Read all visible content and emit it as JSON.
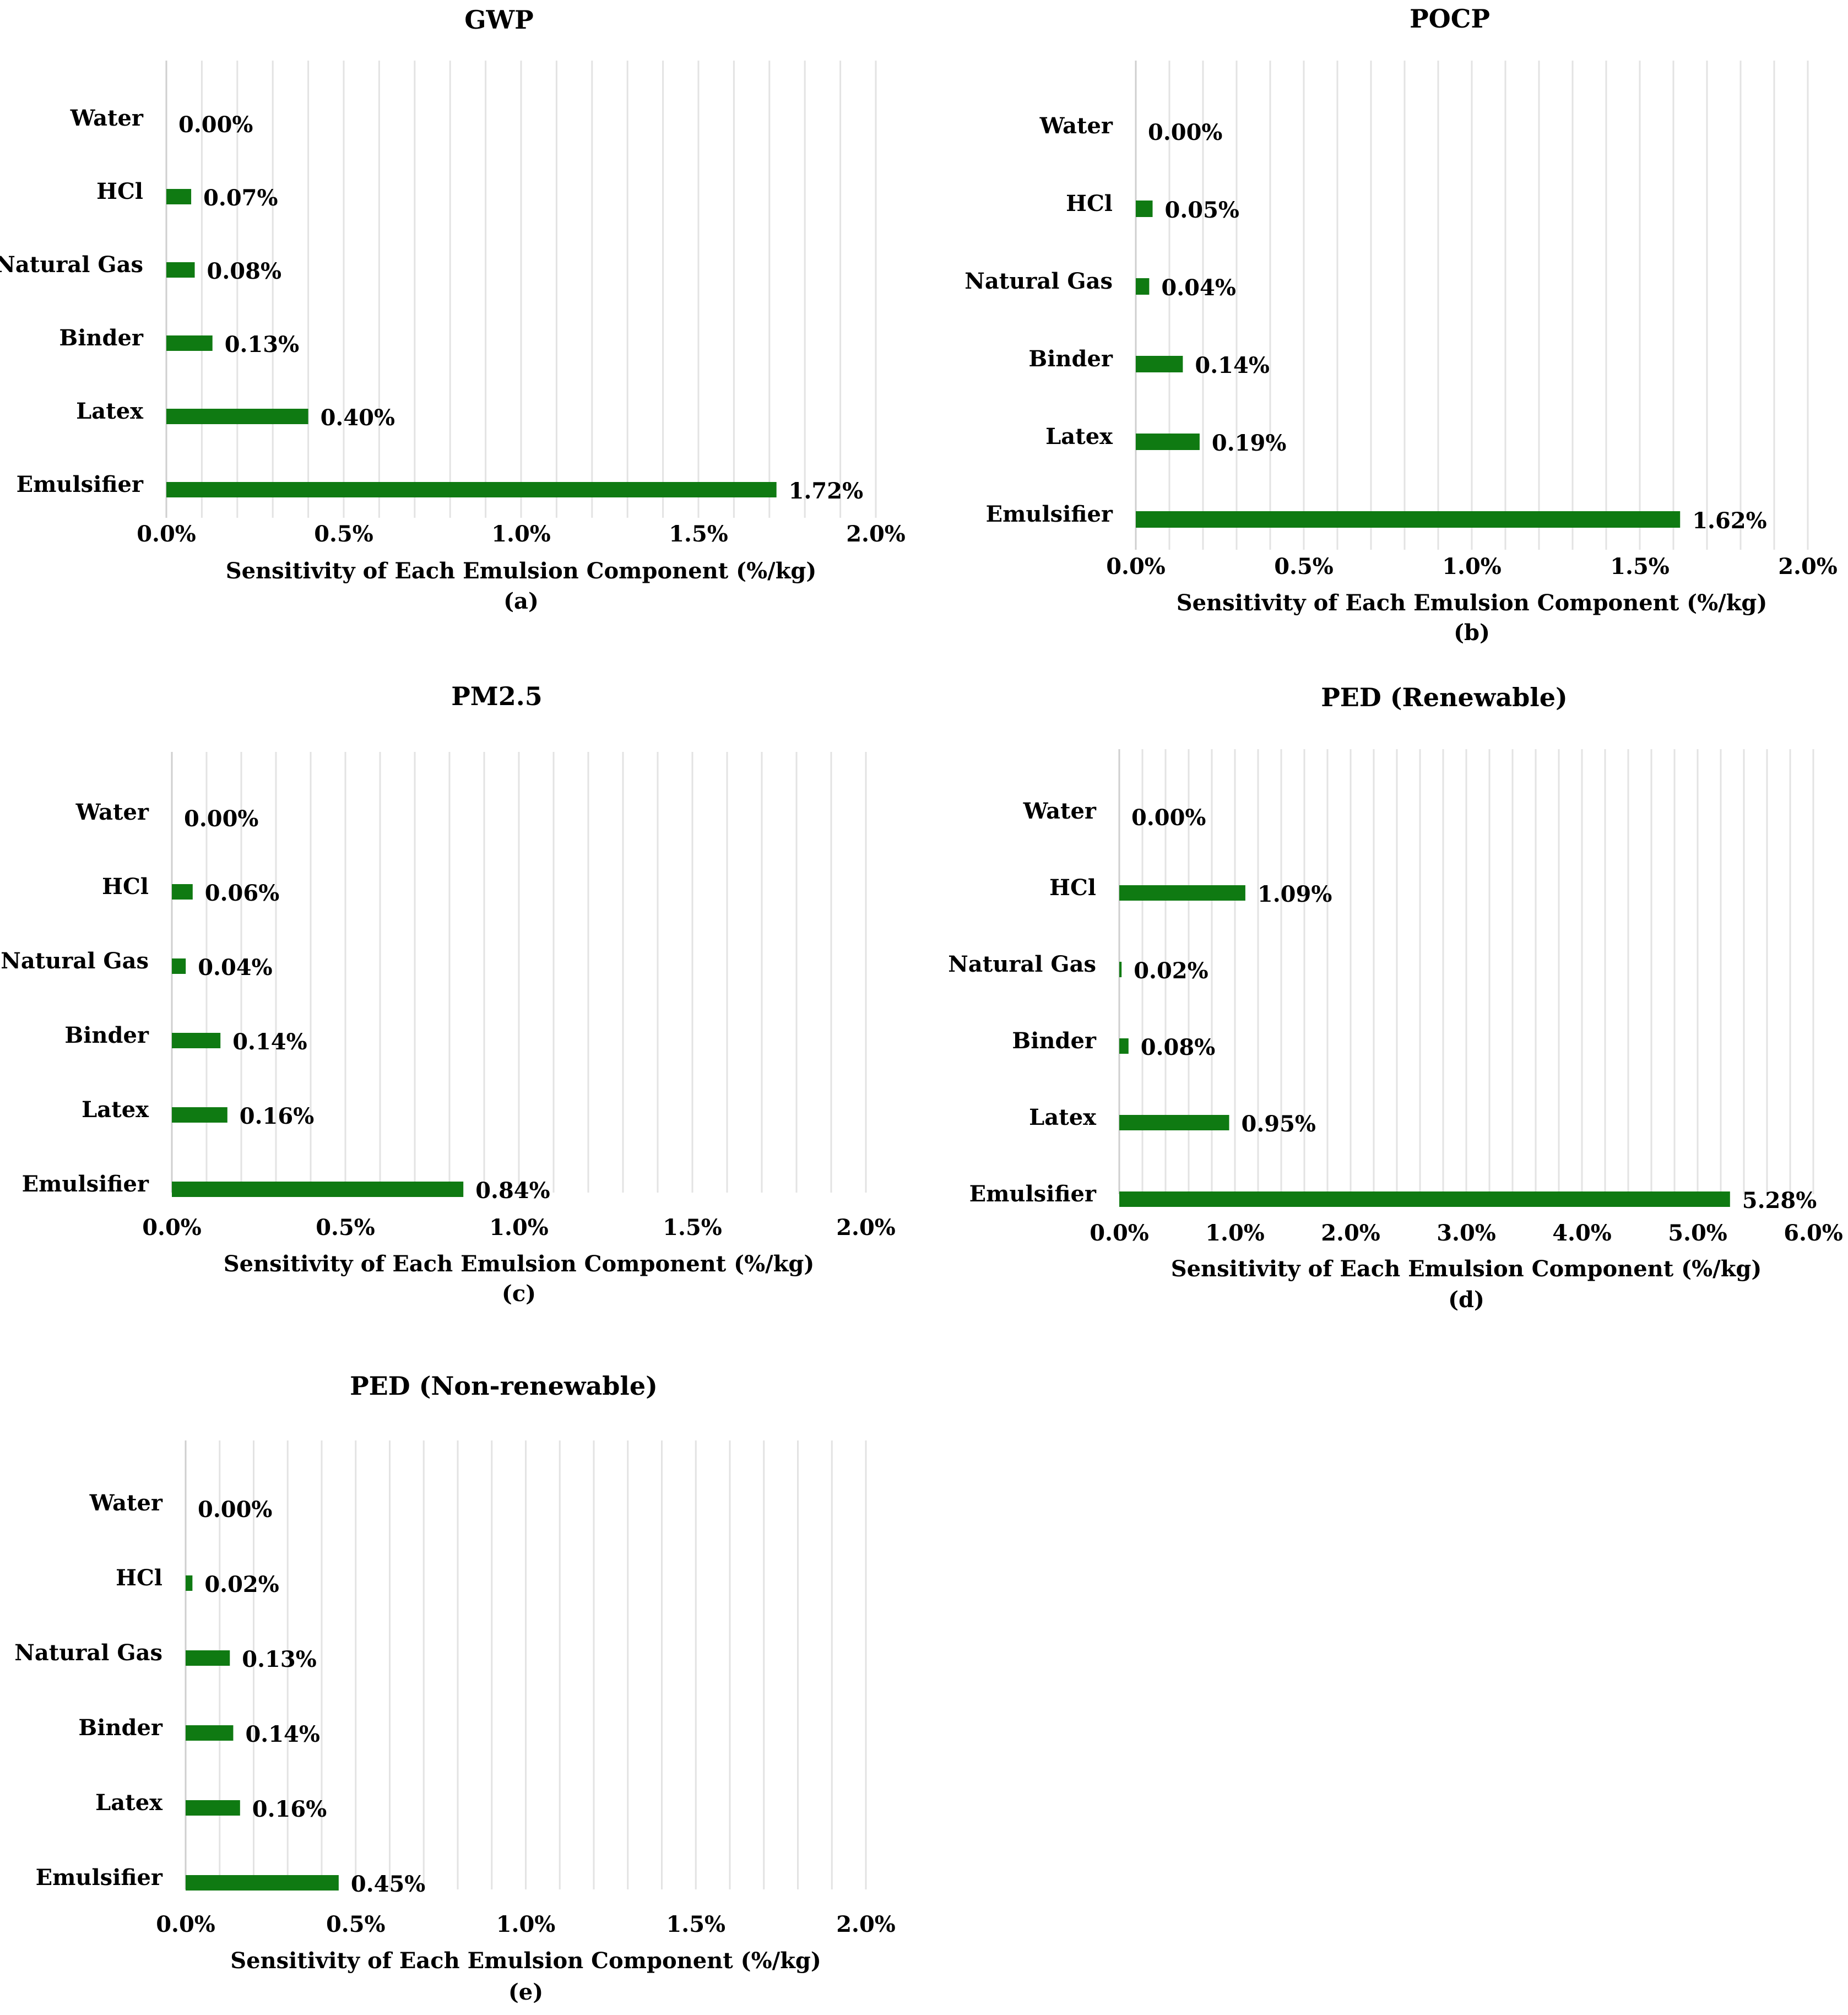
{
  "chart_data": [
    {
      "type": "bar",
      "orientation": "horizontal",
      "title": "GWP",
      "xlabel": "Sensitivity of Each Emulsion Component (%/kg)",
      "caption": "(a)",
      "categories": [
        "Water",
        "HCl",
        "Natural Gas",
        "Binder",
        "Latex",
        "Emulsifier"
      ],
      "values": [
        0.0,
        0.07,
        0.08,
        0.13,
        0.4,
        1.72
      ],
      "value_labels": [
        "0.00%",
        "0.07%",
        "0.08%",
        "0.13%",
        "0.40%",
        "1.72%"
      ],
      "xlim": [
        0,
        2.0
      ],
      "xticks": [
        0,
        0.5,
        1.0,
        1.5,
        2.0
      ],
      "xtick_labels": [
        "0.0%",
        "0.5%",
        "1.0%",
        "1.5%",
        "2.0%"
      ],
      "grid_step": 0.1,
      "grid": true,
      "color": "#0f7a12"
    },
    {
      "type": "bar",
      "orientation": "horizontal",
      "title": "POCP",
      "xlabel": "Sensitivity of Each Emulsion Component (%/kg)",
      "caption": "(b)",
      "categories": [
        "Water",
        "HCl",
        "Natural Gas",
        "Binder",
        "Latex",
        "Emulsifier"
      ],
      "values": [
        0.0,
        0.05,
        0.04,
        0.14,
        0.19,
        1.62
      ],
      "value_labels": [
        "0.00%",
        "0.05%",
        "0.04%",
        "0.14%",
        "0.19%",
        "1.62%"
      ],
      "xlim": [
        0,
        2.0
      ],
      "xticks": [
        0,
        0.5,
        1.0,
        1.5,
        2.0
      ],
      "xtick_labels": [
        "0.0%",
        "0.5%",
        "1.0%",
        "1.5%",
        "2.0%"
      ],
      "grid_step": 0.1,
      "grid": true,
      "color": "#0f7a12"
    },
    {
      "type": "bar",
      "orientation": "horizontal",
      "title": "PM2.5",
      "xlabel": "Sensitivity of Each Emulsion Component (%/kg)",
      "caption": "(c)",
      "categories": [
        "Water",
        "HCl",
        "Natural Gas",
        "Binder",
        "Latex",
        "Emulsifier"
      ],
      "values": [
        0.0,
        0.06,
        0.04,
        0.14,
        0.16,
        0.84
      ],
      "value_labels": [
        "0.00%",
        "0.06%",
        "0.04%",
        "0.14%",
        "0.16%",
        "0.84%"
      ],
      "xlim": [
        0,
        2.0
      ],
      "xticks": [
        0,
        0.5,
        1.0,
        1.5,
        2.0
      ],
      "xtick_labels": [
        "0.0%",
        "0.5%",
        "1.0%",
        "1.5%",
        "2.0%"
      ],
      "grid_step": 0.1,
      "grid": true,
      "color": "#0f7a12"
    },
    {
      "type": "bar",
      "orientation": "horizontal",
      "title": "PED (Renewable)",
      "xlabel": "Sensitivity of Each Emulsion Component (%/kg)",
      "caption": "(d)",
      "categories": [
        "Water",
        "HCl",
        "Natural Gas",
        "Binder",
        "Latex",
        "Emulsifier"
      ],
      "values": [
        0.0,
        1.09,
        0.02,
        0.08,
        0.95,
        5.28
      ],
      "value_labels": [
        "0.00%",
        "1.09%",
        "0.02%",
        "0.08%",
        "0.95%",
        "5.28%"
      ],
      "xlim": [
        0,
        6.0
      ],
      "xticks": [
        0,
        1.0,
        2.0,
        3.0,
        4.0,
        5.0,
        6.0
      ],
      "xtick_labels": [
        "0.0%",
        "1.0%",
        "2.0%",
        "3.0%",
        "4.0%",
        "5.0%",
        "6.0%"
      ],
      "grid_step": 0.2,
      "grid": true,
      "color": "#0f7a12"
    },
    {
      "type": "bar",
      "orientation": "horizontal",
      "title": "PED (Non-renewable)",
      "xlabel": "Sensitivity of Each Emulsion Component (%/kg)",
      "caption": "(e)",
      "categories": [
        "Water",
        "HCl",
        "Natural Gas",
        "Binder",
        "Latex",
        "Emulsifier"
      ],
      "values": [
        0.0,
        0.02,
        0.13,
        0.14,
        0.16,
        0.45
      ],
      "value_labels": [
        "0.00%",
        "0.02%",
        "0.13%",
        "0.14%",
        "0.16%",
        "0.45%"
      ],
      "xlim": [
        0,
        2.0
      ],
      "xticks": [
        0,
        0.5,
        1.0,
        1.5,
        2.0
      ],
      "xtick_labels": [
        "0.0%",
        "0.5%",
        "1.0%",
        "1.5%",
        "2.0%"
      ],
      "grid_step": 0.1,
      "grid": true,
      "color": "#0f7a12"
    }
  ]
}
